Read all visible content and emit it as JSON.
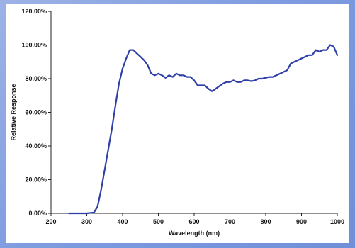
{
  "chart_data": {
    "type": "line",
    "title": "",
    "xlabel": "Wavelength (nm)",
    "ylabel": "Relative Response",
    "xlim": [
      200,
      1000
    ],
    "ylim": [
      0,
      120
    ],
    "x_ticks": [
      200,
      300,
      400,
      500,
      600,
      700,
      800,
      900,
      1000
    ],
    "y_ticks": [
      0,
      20,
      40,
      60,
      80,
      100,
      120
    ],
    "y_tick_labels": [
      "0.00%",
      "20.00%",
      "40.00%",
      "60.00%",
      "80.00%",
      "100.00%",
      "120.00%"
    ],
    "grid": false,
    "legend": "none",
    "line_color": "#2f3fa8",
    "series": [
      {
        "x": [
          250,
          300,
          320,
          330,
          340,
          350,
          360,
          370,
          380,
          390,
          400,
          410,
          420,
          430,
          440,
          450,
          460,
          470,
          480,
          490,
          500,
          510,
          520,
          530,
          540,
          550,
          560,
          570,
          580,
          590,
          600,
          610,
          620,
          630,
          640,
          650,
          660,
          670,
          680,
          690,
          700,
          710,
          720,
          730,
          740,
          750,
          760,
          770,
          780,
          790,
          800,
          810,
          820,
          830,
          840,
          850,
          860,
          870,
          880,
          890,
          900,
          910,
          920,
          930,
          940,
          950,
          960,
          970,
          980,
          990,
          1000
        ],
        "y": [
          0,
          0,
          0.5,
          4,
          14,
          26,
          38,
          50,
          64,
          77,
          86,
          92,
          97,
          97,
          95,
          93,
          91,
          88,
          83,
          82,
          83,
          82,
          80.5,
          82,
          81,
          83,
          82,
          82,
          81,
          81,
          79,
          76,
          76,
          76,
          74,
          72.5,
          74,
          75.5,
          77,
          78,
          78,
          79,
          78,
          78,
          79,
          79,
          78.5,
          79,
          80,
          80,
          80.5,
          81,
          81,
          82,
          83,
          84,
          85,
          89,
          90,
          91,
          92,
          93,
          94,
          94,
          97,
          96,
          97,
          97,
          100,
          99,
          94
        ]
      }
    ]
  }
}
